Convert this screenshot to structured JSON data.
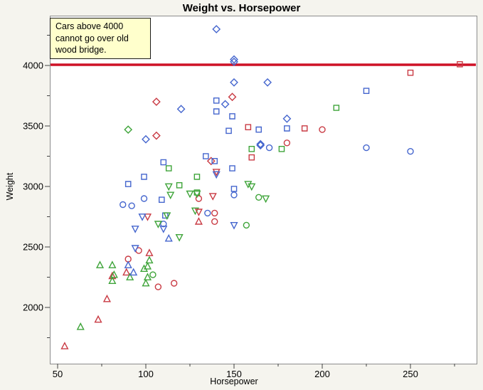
{
  "chart_data": {
    "type": "scatter",
    "title": "Weight vs. Horsepower",
    "xlabel": "Horsepower",
    "ylabel": "Weight",
    "x_ticks": [
      50,
      100,
      150,
      200,
      250
    ],
    "x_minor_ticks": [
      75,
      125,
      175,
      225,
      275
    ],
    "y_ticks": [
      4000,
      3500,
      3000,
      2500,
      2000
    ],
    "y_minor_ticks": [
      4250,
      3750,
      3250,
      2750,
      2250,
      1750
    ],
    "xlim": [
      46,
      288
    ],
    "ylim": [
      1536,
      4412
    ],
    "grid": false,
    "legend": "none",
    "reference_line": {
      "orientation": "horizontal",
      "value": 4000,
      "color": "#CE1126",
      "stroke_width": 3.6
    },
    "annotation": {
      "text": "Cars above 4000\ncannot go over old\nwood bridge.",
      "fill": "#FFFFCC",
      "border": "#1a1a1a"
    },
    "colors": {
      "red": "#C93A43",
      "green": "#3EA439",
      "blue": "#4566CE"
    },
    "points_format": [
      "horsepower",
      "weight",
      "color",
      "shape"
    ],
    "points": [
      [
        140,
        4300,
        "blue",
        "diamond"
      ],
      [
        150,
        4050,
        "blue",
        "diamond"
      ],
      [
        150,
        4030,
        "blue",
        "diamond"
      ],
      [
        150,
        3860,
        "blue",
        "diamond"
      ],
      [
        169,
        3860,
        "blue",
        "diamond"
      ],
      [
        145,
        3680,
        "blue",
        "diamond"
      ],
      [
        120,
        3640,
        "blue",
        "diamond"
      ],
      [
        100,
        3390,
        "blue",
        "diamond"
      ],
      [
        180,
        3560,
        "blue",
        "diamond"
      ],
      [
        165,
        3350,
        "blue",
        "diamond"
      ],
      [
        165,
        3340,
        "blue",
        "diamond"
      ],
      [
        149,
        3740,
        "red",
        "diamond"
      ],
      [
        106,
        3700,
        "red",
        "diamond"
      ],
      [
        106,
        3420,
        "red",
        "diamond"
      ],
      [
        137,
        3210,
        "red",
        "diamond"
      ],
      [
        90,
        3470,
        "green",
        "diamond"
      ],
      [
        278,
        4010,
        "red",
        "square"
      ],
      [
        250,
        3940,
        "red",
        "square"
      ],
      [
        190,
        3480,
        "red",
        "square"
      ],
      [
        158,
        3490,
        "red",
        "square"
      ],
      [
        160,
        3240,
        "red",
        "square"
      ],
      [
        225,
        3790,
        "blue",
        "square"
      ],
      [
        140,
        3710,
        "blue",
        "square"
      ],
      [
        140,
        3620,
        "blue",
        "square"
      ],
      [
        149,
        3580,
        "blue",
        "square"
      ],
      [
        180,
        3480,
        "blue",
        "square"
      ],
      [
        164,
        3470,
        "blue",
        "square"
      ],
      [
        147,
        3460,
        "blue",
        "square"
      ],
      [
        134,
        3250,
        "blue",
        "square"
      ],
      [
        139,
        3210,
        "blue",
        "square"
      ],
      [
        110,
        3200,
        "blue",
        "square"
      ],
      [
        149,
        3150,
        "blue",
        "square"
      ],
      [
        99,
        3080,
        "blue",
        "square"
      ],
      [
        90,
        3020,
        "blue",
        "square"
      ],
      [
        150,
        2980,
        "blue",
        "square"
      ],
      [
        109,
        2890,
        "blue",
        "square"
      ],
      [
        111,
        2760,
        "blue",
        "square"
      ],
      [
        208,
        3650,
        "green",
        "square"
      ],
      [
        160,
        3310,
        "green",
        "square"
      ],
      [
        177,
        3310,
        "green",
        "square"
      ],
      [
        113,
        3150,
        "green",
        "square"
      ],
      [
        129,
        3080,
        "green",
        "square"
      ],
      [
        119,
        3010,
        "green",
        "square"
      ],
      [
        129,
        2950,
        "green",
        "square"
      ],
      [
        200,
        3470,
        "red",
        "circle"
      ],
      [
        180,
        3360,
        "red",
        "circle"
      ],
      [
        130,
        2900,
        "red",
        "circle"
      ],
      [
        139,
        2780,
        "red",
        "circle"
      ],
      [
        139,
        2710,
        "red",
        "circle"
      ],
      [
        96,
        2470,
        "red",
        "circle"
      ],
      [
        90,
        2400,
        "red",
        "circle"
      ],
      [
        116,
        2200,
        "red",
        "circle"
      ],
      [
        107,
        2170,
        "red",
        "circle"
      ],
      [
        225,
        3320,
        "blue",
        "circle"
      ],
      [
        250,
        3290,
        "blue",
        "circle"
      ],
      [
        170,
        3320,
        "blue",
        "circle"
      ],
      [
        150,
        2930,
        "blue",
        "circle"
      ],
      [
        99,
        2900,
        "blue",
        "circle"
      ],
      [
        92,
        2840,
        "blue",
        "circle"
      ],
      [
        87,
        2850,
        "blue",
        "circle"
      ],
      [
        135,
        2780,
        "blue",
        "circle"
      ],
      [
        110,
        2690,
        "blue",
        "circle"
      ],
      [
        164,
        2910,
        "green",
        "circle"
      ],
      [
        157,
        2680,
        "green",
        "circle"
      ],
      [
        104,
        2270,
        "green",
        "circle"
      ],
      [
        113,
        3000,
        "green",
        "triangle-down"
      ],
      [
        114,
        2930,
        "green",
        "triangle-down"
      ],
      [
        125,
        2940,
        "green",
        "triangle-down"
      ],
      [
        129,
        2940,
        "green",
        "triangle-down"
      ],
      [
        158,
        3020,
        "green",
        "triangle-down"
      ],
      [
        160,
        3000,
        "green",
        "triangle-down"
      ],
      [
        168,
        2900,
        "green",
        "triangle-down"
      ],
      [
        128,
        2800,
        "green",
        "triangle-down"
      ],
      [
        119,
        2580,
        "green",
        "triangle-down"
      ],
      [
        107,
        2690,
        "green",
        "triangle-down"
      ],
      [
        112,
        2760,
        "green",
        "triangle-down"
      ],
      [
        140,
        3120,
        "red",
        "triangle-down"
      ],
      [
        138,
        2920,
        "red",
        "triangle-down"
      ],
      [
        130,
        2790,
        "red",
        "triangle-down"
      ],
      [
        101,
        2750,
        "red",
        "triangle-down"
      ],
      [
        140,
        3100,
        "blue",
        "triangle-down"
      ],
      [
        98,
        2750,
        "blue",
        "triangle-down"
      ],
      [
        94,
        2650,
        "blue",
        "triangle-down"
      ],
      [
        110,
        2650,
        "blue",
        "triangle-down"
      ],
      [
        150,
        2680,
        "blue",
        "triangle-down"
      ],
      [
        94,
        2490,
        "blue",
        "triangle-down"
      ],
      [
        130,
        2710,
        "red",
        "triangle-up"
      ],
      [
        102,
        2450,
        "red",
        "triangle-up"
      ],
      [
        81,
        2260,
        "red",
        "triangle-up"
      ],
      [
        89,
        2290,
        "red",
        "triangle-up"
      ],
      [
        78,
        2070,
        "red",
        "triangle-up"
      ],
      [
        73,
        1900,
        "red",
        "triangle-up"
      ],
      [
        54,
        1680,
        "red",
        "triangle-up"
      ],
      [
        102,
        2390,
        "green",
        "triangle-up"
      ],
      [
        74,
        2350,
        "green",
        "triangle-up"
      ],
      [
        81,
        2350,
        "green",
        "triangle-up"
      ],
      [
        101,
        2340,
        "green",
        "triangle-up"
      ],
      [
        99,
        2320,
        "green",
        "triangle-up"
      ],
      [
        82,
        2270,
        "green",
        "triangle-up"
      ],
      [
        91,
        2250,
        "green",
        "triangle-up"
      ],
      [
        101,
        2250,
        "green",
        "triangle-up"
      ],
      [
        100,
        2200,
        "green",
        "triangle-up"
      ],
      [
        81,
        2220,
        "green",
        "triangle-up"
      ],
      [
        63,
        1840,
        "green",
        "triangle-up"
      ],
      [
        90,
        2350,
        "blue",
        "triangle-up"
      ],
      [
        93,
        2290,
        "blue",
        "triangle-up"
      ],
      [
        113,
        2570,
        "blue",
        "triangle-up"
      ]
    ]
  }
}
